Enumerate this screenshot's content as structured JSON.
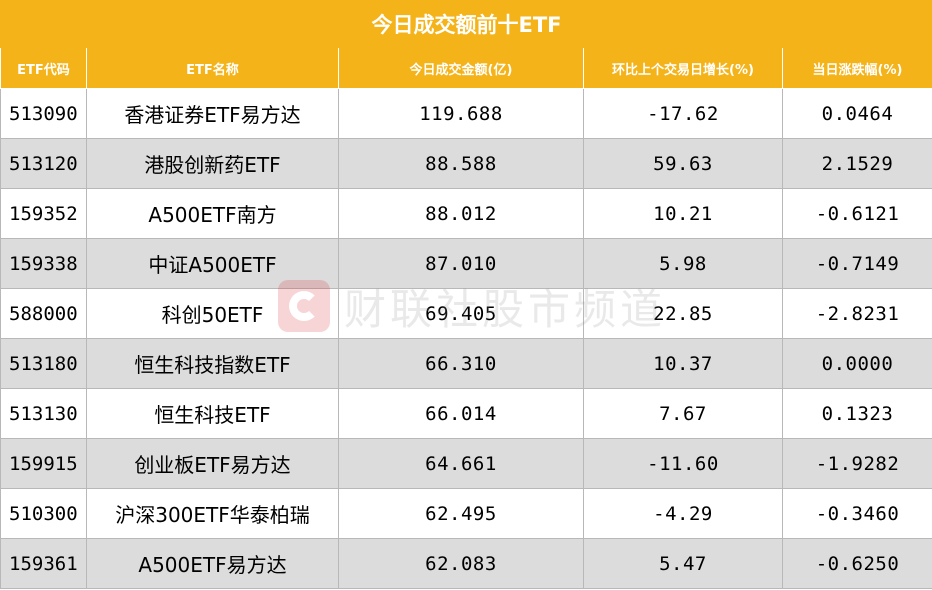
{
  "title": "今日成交额前十ETF",
  "columns": [
    "ETF代码",
    "ETF名称",
    "今日成交金额(亿)",
    "环比上个交易日增长(%)",
    "当日涨跌幅(%)"
  ],
  "rows": [
    {
      "code": "513090",
      "name": "香港证券ETF易方达",
      "amount": "119.688",
      "change_vs_prev": "-17.62",
      "pct_change": "0.0464"
    },
    {
      "code": "513120",
      "name": "港股创新药ETF",
      "amount": "88.588",
      "change_vs_prev": "59.63",
      "pct_change": "2.1529"
    },
    {
      "code": "159352",
      "name": "A500ETF南方",
      "amount": "88.012",
      "change_vs_prev": "10.21",
      "pct_change": "-0.6121"
    },
    {
      "code": "159338",
      "name": "中证A500ETF",
      "amount": "87.010",
      "change_vs_prev": "5.98",
      "pct_change": "-0.7149"
    },
    {
      "code": "588000",
      "name": "科创50ETF",
      "amount": "69.405",
      "change_vs_prev": "22.85",
      "pct_change": "-2.8231"
    },
    {
      "code": "513180",
      "name": "恒生科技指数ETF",
      "amount": "66.310",
      "change_vs_prev": "10.37",
      "pct_change": "0.0000"
    },
    {
      "code": "513130",
      "name": "恒生科技ETF",
      "amount": "66.014",
      "change_vs_prev": "7.67",
      "pct_change": "0.1323"
    },
    {
      "code": "159915",
      "name": "创业板ETF易方达",
      "amount": "64.661",
      "change_vs_prev": "-11.60",
      "pct_change": "-1.9282"
    },
    {
      "code": "510300",
      "name": "沪深300ETF华泰柏瑞",
      "amount": "62.495",
      "change_vs_prev": "-4.29",
      "pct_change": "-0.3460"
    },
    {
      "code": "159361",
      "name": "A500ETF易方达",
      "amount": "62.083",
      "change_vs_prev": "5.47",
      "pct_change": "-0.6250"
    }
  ],
  "watermark": "财联社股市频道",
  "colors": {
    "header_bg": "#f5b31a",
    "header_text": "#ffffff",
    "alt_row_bg": "#dcdcdc",
    "logo_red": "#d6181e"
  }
}
